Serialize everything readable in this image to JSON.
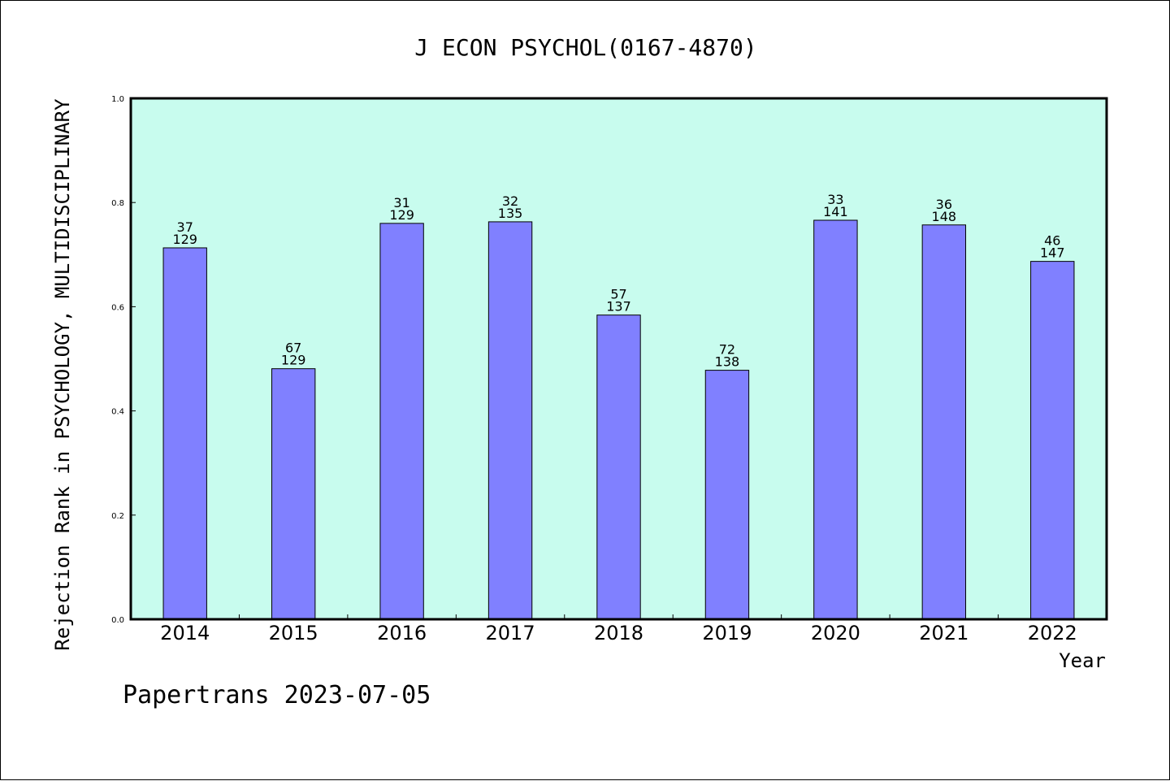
{
  "chart_data": {
    "type": "bar",
    "title": "J ECON PSYCHOL(0167-4870)",
    "xlabel": "Year",
    "ylabel": "Rejection Rank in PSYCHOLOGY, MULTIDISCIPLINARY",
    "categories": [
      "2014",
      "2015",
      "2016",
      "2017",
      "2018",
      "2019",
      "2020",
      "2021",
      "2022"
    ],
    "values": [
      0.713,
      0.481,
      0.76,
      0.763,
      0.584,
      0.478,
      0.766,
      0.757,
      0.687
    ],
    "rank": [
      "37",
      "67",
      "31",
      "32",
      "57",
      "72",
      "33",
      "36",
      "46"
    ],
    "total": [
      "129",
      "129",
      "129",
      "135",
      "137",
      "138",
      "141",
      "148",
      "147"
    ],
    "ylim": [
      0,
      1.0
    ],
    "yticks": [
      "0.0",
      "0.2",
      "0.4",
      "0.6",
      "0.8",
      "1.0"
    ],
    "grid": false,
    "colors": {
      "plot_background": "#c8fcee",
      "bar_fill": "#8080ff",
      "bar_stroke": "#000000"
    }
  },
  "footer": {
    "text": "Papertrans 2023-07-05"
  }
}
